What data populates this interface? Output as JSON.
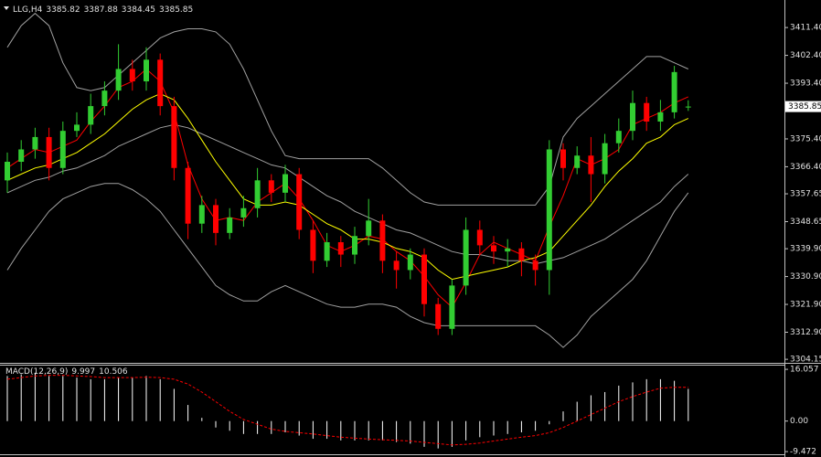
{
  "chart_data": [
    {
      "type": "candlestick",
      "title": "LLG,H4",
      "open": [
        3362,
        3368,
        3372,
        3376,
        3366,
        3378,
        3380,
        3386,
        3391,
        3398,
        3394,
        3401,
        3386,
        3366,
        3348,
        3354,
        3345,
        3350,
        3353,
        3362,
        3358,
        3364,
        3346,
        3336,
        3342,
        3338,
        3344,
        3349,
        3336,
        3333,
        3338,
        3322,
        3314,
        3328,
        3346,
        3341,
        3339,
        3340,
        3336,
        3333,
        3372,
        3366,
        3370,
        3364,
        3374,
        3378,
        3387,
        3381,
        3384,
        3385.82
      ],
      "high": [
        3371,
        3375,
        3379,
        3379,
        3381,
        3384,
        3390,
        3394,
        3406,
        3401,
        3405,
        3403,
        3389,
        3368,
        3357,
        3356,
        3353,
        3357,
        3366,
        3364,
        3367,
        3366,
        3349,
        3345,
        3344,
        3347,
        3356,
        3351,
        3339,
        3340,
        3340,
        3324,
        3330,
        3350,
        3349,
        3344,
        3343,
        3342,
        3338,
        3375,
        3374,
        3373,
        3376,
        3377,
        3382,
        3391,
        3389,
        3388,
        3399,
        3387.88
      ],
      "low": [
        3358,
        3365,
        3369,
        3362,
        3364,
        3376,
        3377,
        3383,
        3388,
        3391,
        3391,
        3383,
        3362,
        3343,
        3345,
        3341,
        3343,
        3347,
        3350,
        3355,
        3355,
        3343,
        3332,
        3334,
        3334,
        3335,
        3341,
        3332,
        3327,
        3330,
        3318,
        3312,
        3312,
        3325,
        3338,
        3335,
        3334,
        3331,
        3328,
        3325,
        3362,
        3364,
        3355,
        3361,
        3371,
        3375,
        3378,
        3378,
        3382,
        3384.45
      ],
      "close": [
        3368,
        3372,
        3376,
        3366,
        3378,
        3380,
        3386,
        3391,
        3398,
        3394,
        3401,
        3386,
        3366,
        3348,
        3354,
        3345,
        3350,
        3353,
        3362,
        3358,
        3364,
        3346,
        3336,
        3342,
        3338,
        3344,
        3349,
        3336,
        3333,
        3338,
        3322,
        3314,
        3328,
        3346,
        3341,
        3339,
        3340,
        3336,
        3333,
        3372,
        3366,
        3370,
        3364,
        3374,
        3378,
        3387,
        3381,
        3384,
        3397,
        3385.85
      ],
      "up_color": "#32cd32",
      "down_color": "#ff0000",
      "lines": [
        {
          "color": "#a0a0a0",
          "values": [
            3405,
            3412,
            3416,
            3412,
            3400,
            3392,
            3391,
            3392,
            3396,
            3400,
            3404,
            3408,
            3410,
            3411,
            3411,
            3410,
            3406,
            3398,
            3388,
            3378,
            3370,
            3369,
            3369,
            3369,
            3369,
            3369,
            3369,
            3366,
            3362,
            3358,
            3355,
            3354,
            3354,
            3354,
            3354,
            3354,
            3354,
            3354,
            3354,
            3360,
            3376,
            3382,
            3386,
            3390,
            3394,
            3398,
            3402,
            3402,
            3400,
            3398
          ]
        },
        {
          "color": "#a0a0a0",
          "values": [
            3358,
            3360,
            3362,
            3363,
            3365,
            3366,
            3368,
            3370,
            3373,
            3375,
            3377,
            3379,
            3380,
            3379,
            3377,
            3375,
            3373,
            3371,
            3369,
            3367,
            3366,
            3363,
            3360,
            3357,
            3355,
            3352,
            3350,
            3348,
            3346,
            3345,
            3343,
            3341,
            3339,
            3338,
            3338,
            3337,
            3336,
            3336,
            3335,
            3336,
            3337,
            3339,
            3341,
            3343,
            3346,
            3349,
            3352,
            3355,
            3360,
            3364
          ]
        },
        {
          "color": "#a0a0a0",
          "values": [
            3333,
            3340,
            3346,
            3352,
            3356,
            3358,
            3360,
            3361,
            3361,
            3359,
            3356,
            3352,
            3346,
            3340,
            3334,
            3328,
            3325,
            3323,
            3323,
            3326,
            3328,
            3326,
            3324,
            3322,
            3321,
            3321,
            3322,
            3322,
            3321,
            3318,
            3316,
            3315,
            3315,
            3315,
            3315,
            3315,
            3315,
            3315,
            3315,
            3312,
            3308,
            3312,
            3318,
            3322,
            3326,
            3330,
            3336,
            3344,
            3352,
            3358
          ]
        },
        {
          "color": "#ff0000",
          "values": [
            3366,
            3369,
            3372,
            3371,
            3373,
            3375,
            3381,
            3386,
            3392,
            3394,
            3398,
            3394,
            3384,
            3367,
            3356,
            3349,
            3350,
            3349,
            3355,
            3358,
            3361,
            3356,
            3349,
            3341,
            3339,
            3341,
            3344,
            3343,
            3339,
            3336,
            3331,
            3325,
            3321,
            3329,
            3338,
            3342,
            3340,
            3338,
            3336,
            3347,
            3357,
            3369,
            3367,
            3369,
            3372,
            3380,
            3382,
            3384,
            3387,
            3389
          ]
        },
        {
          "color": "#ffff00",
          "values": [
            3362,
            3364,
            3366,
            3367,
            3369,
            3371,
            3374,
            3377,
            3381,
            3385,
            3388,
            3390,
            3388,
            3382,
            3375,
            3368,
            3362,
            3356,
            3354,
            3354,
            3355,
            3354,
            3351,
            3348,
            3346,
            3343,
            3343,
            3342,
            3340,
            3339,
            3337,
            3333,
            3330,
            3331,
            3332,
            3333,
            3334,
            3336,
            3337,
            3339,
            3344,
            3349,
            3354,
            3360,
            3365,
            3369,
            3374,
            3376,
            3380,
            3382
          ]
        }
      ],
      "ylim": [
        3303.0,
        3420.3
      ],
      "yticks": [
        {
          "value": 3411.4,
          "label": "3411.40"
        },
        {
          "value": 3402.4,
          "label": "3402.40"
        },
        {
          "value": 3393.4,
          "label": "3393.40"
        },
        {
          "value": 3375.4,
          "label": "3375.40"
        },
        {
          "value": 3366.4,
          "label": "3366.40"
        },
        {
          "value": 3357.65,
          "label": "3357.65"
        },
        {
          "value": 3348.65,
          "label": "3348.65"
        },
        {
          "value": 3339.9,
          "label": "3339.90"
        },
        {
          "value": 3330.9,
          "label": "3330.90"
        },
        {
          "value": 3321.9,
          "label": "3321.90"
        },
        {
          "value": 3312.9,
          "label": "3312.90"
        },
        {
          "value": 3304.15,
          "label": "3304.15"
        }
      ]
    },
    {
      "type": "macd",
      "title": "MACD(12,26,9)",
      "histogram": {
        "color": "#ffffff",
        "values": [
          14,
          14.5,
          15,
          14,
          14,
          13.5,
          13,
          13,
          13.5,
          13.5,
          14,
          13,
          10,
          5,
          1,
          -2,
          -3,
          -4,
          -4,
          -4,
          -3.5,
          -4.5,
          -5.5,
          -5.5,
          -6,
          -6,
          -6,
          -6,
          -6.5,
          -7,
          -8,
          -8.5,
          -8,
          -6,
          -5,
          -4.5,
          -4,
          -3.5,
          -3,
          -1,
          3,
          6,
          8,
          9,
          11,
          12,
          13,
          13,
          12.5,
          9.997
        ]
      },
      "signal": {
        "color": "#ff0000",
        "values": [
          13,
          13.5,
          14,
          14.2,
          14.2,
          14,
          13.8,
          13.5,
          13.5,
          13.5,
          13.6,
          13.5,
          13,
          11.5,
          9,
          6,
          3,
          0.5,
          -1,
          -2.5,
          -3.2,
          -3.6,
          -4,
          -4.5,
          -5,
          -5.3,
          -5.6,
          -5.8,
          -6,
          -6.2,
          -6.6,
          -7,
          -7.4,
          -7.2,
          -6.8,
          -6.2,
          -5.6,
          -5,
          -4.5,
          -3.6,
          -2,
          0,
          2,
          4,
          6,
          7.6,
          9,
          10.2,
          10.5,
          10.506
        ]
      },
      "ylim": [
        -10.3,
        17.5
      ],
      "yticks": [
        16.057,
        {
          "value": 0,
          "label": "0.00"
        },
        -9.472
      ]
    }
  ]
}
